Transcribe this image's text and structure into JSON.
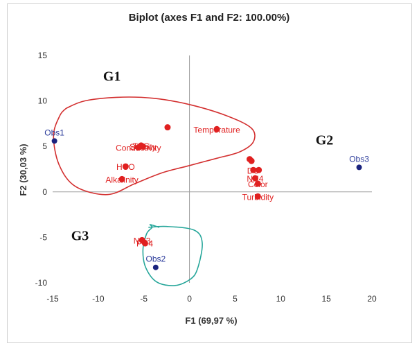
{
  "chart_data": {
    "type": "scatter",
    "title": "Biplot (axes F1 and F2: 100.00%)",
    "xlabel": "F1 (69,97 %)",
    "ylabel": "F2 (30,03 %)",
    "xlim": [
      -15,
      20
    ],
    "ylim": [
      -10,
      15
    ],
    "xticks": [
      -15,
      -10,
      -5,
      0,
      5,
      10,
      15,
      20
    ],
    "yticks": [
      -10,
      -5,
      0,
      5,
      10,
      15
    ],
    "grid": false,
    "colors": {
      "variables": "#e02020",
      "observations": "#1a237e",
      "g1_outline": "#d32f2f",
      "g3_outline": "#26a69a",
      "axis_zero": "#9e9e9e"
    },
    "variables": [
      {
        "label": "Temperature",
        "x": 3.0,
        "y": 6.9
      },
      {
        "label": "",
        "x": -2.4,
        "y": 7.1
      },
      {
        "label": "TDS",
        "x": -5.3,
        "y": 5.1
      },
      {
        "label": "Conductivity",
        "x": -5.6,
        "y": 4.9
      },
      {
        "label": "Salinity",
        "x": -5.1,
        "y": 5.0
      },
      {
        "label": "HCO",
        "x": -7.0,
        "y": 2.8
      },
      {
        "label": "Alkalinity",
        "x": -7.4,
        "y": 1.4
      },
      {
        "label": "",
        "x": 6.6,
        "y": 3.6
      },
      {
        "label": "",
        "x": 6.8,
        "y": 3.4
      },
      {
        "label": "DO",
        "x": 7.0,
        "y": 2.4
      },
      {
        "label": "",
        "x": 7.6,
        "y": 2.4
      },
      {
        "label": "NH4",
        "x": 7.2,
        "y": 1.5
      },
      {
        "label": "Color",
        "x": 7.5,
        "y": 0.9
      },
      {
        "label": "Turbidity",
        "x": 7.5,
        "y": -0.5
      },
      {
        "label": "NO3",
        "x": -5.2,
        "y": -5.3
      },
      {
        "label": "PO4",
        "x": -4.9,
        "y": -5.6
      }
    ],
    "observations": [
      {
        "label": "Obs1",
        "x": -14.8,
        "y": 5.6
      },
      {
        "label": "Obs2",
        "x": -3.7,
        "y": -8.3
      },
      {
        "label": "Obs3",
        "x": 18.6,
        "y": 2.7
      }
    ],
    "groups": [
      {
        "label": "G1",
        "x": -8.5,
        "y": 12.2
      },
      {
        "label": "G2",
        "x": 14.8,
        "y": 5.2
      },
      {
        "label": "G3",
        "x": -12.0,
        "y": -5.3
      }
    ],
    "g1_outline": [
      [
        -13.5,
        9.2
      ],
      [
        -11.5,
        10.0
      ],
      [
        -8.0,
        10.4
      ],
      [
        -4.0,
        10.3
      ],
      [
        0.0,
        9.6
      ],
      [
        4.0,
        8.4
      ],
      [
        6.8,
        7.0
      ],
      [
        7.0,
        5.5
      ],
      [
        5.5,
        4.4
      ],
      [
        3.0,
        3.7
      ],
      [
        0.0,
        2.9
      ],
      [
        -3.0,
        2.1
      ],
      [
        -6.0,
        0.9
      ],
      [
        -9.0,
        -0.3
      ],
      [
        -12.5,
        0.6
      ],
      [
        -14.3,
        3.0
      ],
      [
        -14.9,
        6.2
      ],
      [
        -14.2,
        8.4
      ],
      [
        -13.5,
        9.2
      ]
    ],
    "g3_outline": [
      [
        -4.5,
        -3.9
      ],
      [
        -2.5,
        -3.8
      ],
      [
        0.5,
        -4.2
      ],
      [
        1.4,
        -5.6
      ],
      [
        0.9,
        -8.4
      ],
      [
        0.1,
        -9.6
      ],
      [
        -1.6,
        -10.3
      ],
      [
        -3.6,
        -9.9
      ],
      [
        -4.8,
        -8.3
      ],
      [
        -5.1,
        -6.4
      ],
      [
        -4.7,
        -4.6
      ],
      [
        -4.1,
        -3.9
      ],
      [
        -4.3,
        -3.6
      ],
      [
        -3.3,
        -3.9
      ]
    ]
  }
}
